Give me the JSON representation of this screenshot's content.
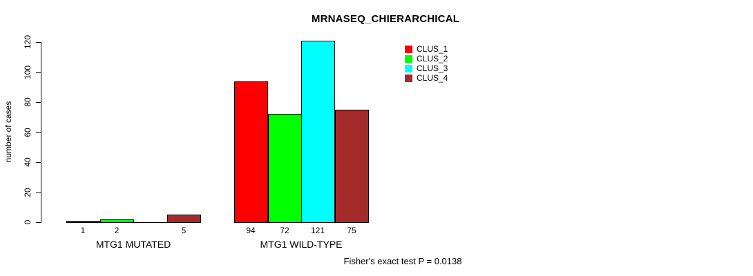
{
  "chart_data": {
    "type": "bar",
    "title": "MRNASEQ_CHIERARCHICAL",
    "ylabel": "number of cases",
    "xlabel": "",
    "ylim": [
      0,
      120
    ],
    "yticks": [
      0,
      20,
      40,
      60,
      80,
      100,
      120
    ],
    "grid": false,
    "legend_position": "top-right-inside",
    "categories": [
      "MTG1 MUTATED",
      "MTG1 WILD-TYPE"
    ],
    "series": [
      {
        "name": "CLUS_1",
        "color": "#FF0000",
        "values": [
          1,
          94
        ]
      },
      {
        "name": "CLUS_2",
        "color": "#00FF00",
        "values": [
          2,
          72
        ]
      },
      {
        "name": "CLUS_3",
        "color": "#00FFFF",
        "values": [
          0,
          121
        ]
      },
      {
        "name": "CLUS_4",
        "color": "#A52A2A",
        "values": [
          5,
          75
        ]
      }
    ],
    "bar_value_labels_shown": true,
    "zero_value_labels_hidden": true,
    "annotation": "Fisher's exact test P = 0.0138"
  },
  "colors": {
    "background": "#FFFFFF",
    "axis": "#000000",
    "text": "#000000"
  }
}
